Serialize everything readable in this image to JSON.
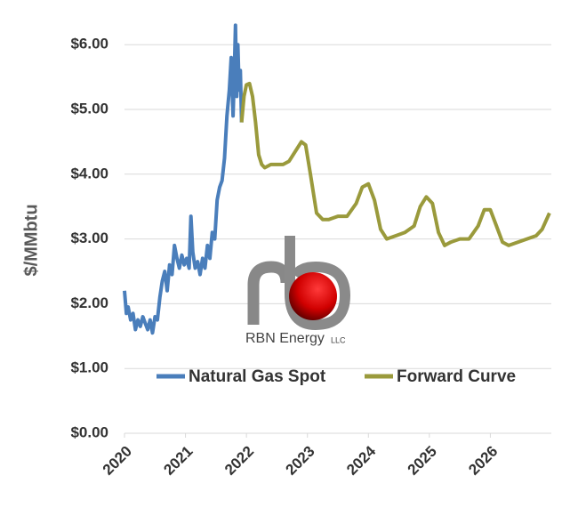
{
  "chart_data": {
    "type": "line",
    "y_label": "$/MMbtu",
    "annotations": [
      "RBN Energy",
      "LLC"
    ],
    "xlim": [
      2020,
      2027
    ],
    "xticks": [
      2020,
      2021,
      2022,
      2023,
      2024,
      2025,
      2026
    ],
    "ylim": [
      0,
      6.5
    ],
    "yticks": [
      {
        "value": 0,
        "label": "$0.00"
      },
      {
        "value": 1,
        "label": "$1.00"
      },
      {
        "value": 2,
        "label": "$2.00"
      },
      {
        "value": 3,
        "label": "$3.00"
      },
      {
        "value": 4,
        "label": "$4.00"
      },
      {
        "value": 5,
        "label": "$5.00"
      },
      {
        "value": 6,
        "label": "$6.00"
      }
    ],
    "grid": true,
    "legend": "bottom",
    "series": [
      {
        "name": "Natural Gas Spot",
        "color": "#4a7ebb",
        "x": [
          2020.0,
          2020.03,
          2020.06,
          2020.1,
          2020.14,
          2020.18,
          2020.22,
          2020.26,
          2020.3,
          2020.34,
          2020.38,
          2020.42,
          2020.46,
          2020.5,
          2020.54,
          2020.58,
          2020.62,
          2020.66,
          2020.7,
          2020.74,
          2020.78,
          2020.82,
          2020.86,
          2020.9,
          2020.94,
          2020.98,
          2021.02,
          2021.06,
          2021.09,
          2021.12,
          2021.16,
          2021.2,
          2021.24,
          2021.28,
          2021.32,
          2021.36,
          2021.4,
          2021.44,
          2021.48,
          2021.52,
          2021.56,
          2021.6,
          2021.64,
          2021.68,
          2021.72,
          2021.75,
          2021.78,
          2021.8,
          2021.82,
          2021.84,
          2021.86,
          2021.88,
          2021.9,
          2021.92
        ],
        "values": [
          2.2,
          1.85,
          1.95,
          1.75,
          1.85,
          1.6,
          1.75,
          1.65,
          1.8,
          1.7,
          1.6,
          1.75,
          1.55,
          1.8,
          1.75,
          2.1,
          2.35,
          2.5,
          2.2,
          2.6,
          2.45,
          2.9,
          2.7,
          2.55,
          2.75,
          2.6,
          2.7,
          2.55,
          3.35,
          2.8,
          2.55,
          2.65,
          2.45,
          2.7,
          2.55,
          2.9,
          2.7,
          3.1,
          3.0,
          3.6,
          3.8,
          3.9,
          4.25,
          4.9,
          5.3,
          5.8,
          4.9,
          5.5,
          6.3,
          5.2,
          6.0,
          5.3,
          5.6,
          4.8
        ]
      },
      {
        "name": "Forward Curve",
        "color": "#9a9a3c",
        "x": [
          2021.92,
          2021.96,
          2022.0,
          2022.05,
          2022.1,
          2022.15,
          2022.2,
          2022.25,
          2022.3,
          2022.4,
          2022.5,
          2022.6,
          2022.7,
          2022.8,
          2022.9,
          2022.97,
          2023.05,
          2023.15,
          2023.25,
          2023.35,
          2023.5,
          2023.65,
          2023.8,
          2023.9,
          2024.0,
          2024.1,
          2024.2,
          2024.3,
          2024.45,
          2024.6,
          2024.75,
          2024.85,
          2024.95,
          2025.05,
          2025.15,
          2025.25,
          2025.35,
          2025.5,
          2025.65,
          2025.8,
          2025.9,
          2026.0,
          2026.1,
          2026.2,
          2026.3,
          2026.45,
          2026.6,
          2026.75,
          2026.85,
          2026.97
        ],
        "values": [
          4.8,
          5.2,
          5.38,
          5.4,
          5.2,
          4.8,
          4.3,
          4.15,
          4.1,
          4.15,
          4.15,
          4.15,
          4.2,
          4.35,
          4.5,
          4.45,
          4.0,
          3.4,
          3.3,
          3.3,
          3.35,
          3.35,
          3.55,
          3.8,
          3.85,
          3.6,
          3.15,
          3.0,
          3.05,
          3.1,
          3.2,
          3.5,
          3.65,
          3.55,
          3.1,
          2.9,
          2.95,
          3.0,
          3.0,
          3.2,
          3.45,
          3.45,
          3.2,
          2.95,
          2.9,
          2.95,
          3.0,
          3.05,
          3.15,
          3.4
        ]
      }
    ]
  }
}
